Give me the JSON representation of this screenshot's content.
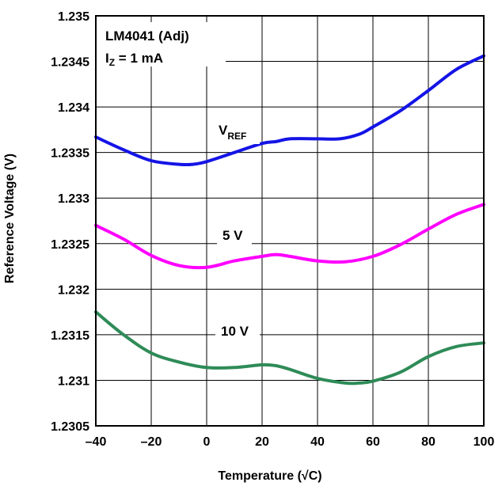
{
  "chart_data": {
    "type": "line",
    "xlabel": "Temperature (√C)",
    "ylabel": "Reference Voltage (V)",
    "xlim": [
      -40,
      100
    ],
    "ylim": [
      1.2305,
      1.235
    ],
    "x_ticks": [
      "–40",
      "–20",
      "0",
      "20",
      "40",
      "60",
      "80",
      "100"
    ],
    "y_ticks": [
      "1.2305",
      "1.231",
      "1.2315",
      "1.232",
      "1.2325",
      "1.233",
      "1.2335",
      "1.234",
      "1.2345",
      "1.235"
    ],
    "grid": true,
    "annotations": {
      "device": "LM4041 (Adj)",
      "condition_main": "I",
      "condition_sub": "Z",
      "condition_rest": " = 1 mA"
    },
    "series": [
      {
        "label_main": "V",
        "label_sub": "REF",
        "color": "#1414e6",
        "x": [
          -40,
          -30,
          -20,
          -10,
          -5,
          0,
          10,
          20,
          25,
          30,
          40,
          48,
          55,
          60,
          70,
          80,
          90,
          100
        ],
        "y": [
          1.23367,
          1.23353,
          1.23341,
          1.23337,
          1.23337,
          1.2334,
          1.2335,
          1.2336,
          1.23362,
          1.23365,
          1.23365,
          1.23365,
          1.2337,
          1.23378,
          1.23396,
          1.23418,
          1.23441,
          1.23456
        ]
      },
      {
        "label_main": "5 V",
        "label_sub": "",
        "color": "#ff00ff",
        "x": [
          -40,
          -30,
          -20,
          -10,
          0,
          10,
          20,
          25,
          30,
          40,
          50,
          60,
          70,
          80,
          90,
          100
        ],
        "y": [
          1.2327,
          1.23255,
          1.23237,
          1.23226,
          1.23224,
          1.23231,
          1.23236,
          1.23238,
          1.23236,
          1.23231,
          1.2323,
          1.23236,
          1.23249,
          1.23266,
          1.23282,
          1.23293
        ]
      },
      {
        "label_main": "10 V",
        "label_sub": "",
        "color": "#2e8b57",
        "x": [
          -40,
          -30,
          -20,
          -10,
          0,
          10,
          20,
          25,
          30,
          40,
          50,
          55,
          60,
          70,
          80,
          90,
          100
        ],
        "y": [
          1.23175,
          1.2315,
          1.2313,
          1.2312,
          1.23114,
          1.23114,
          1.23117,
          1.23116,
          1.23112,
          1.23102,
          1.23097,
          1.23097,
          1.23099,
          1.23109,
          1.23126,
          1.23137,
          1.23141
        ]
      }
    ]
  }
}
